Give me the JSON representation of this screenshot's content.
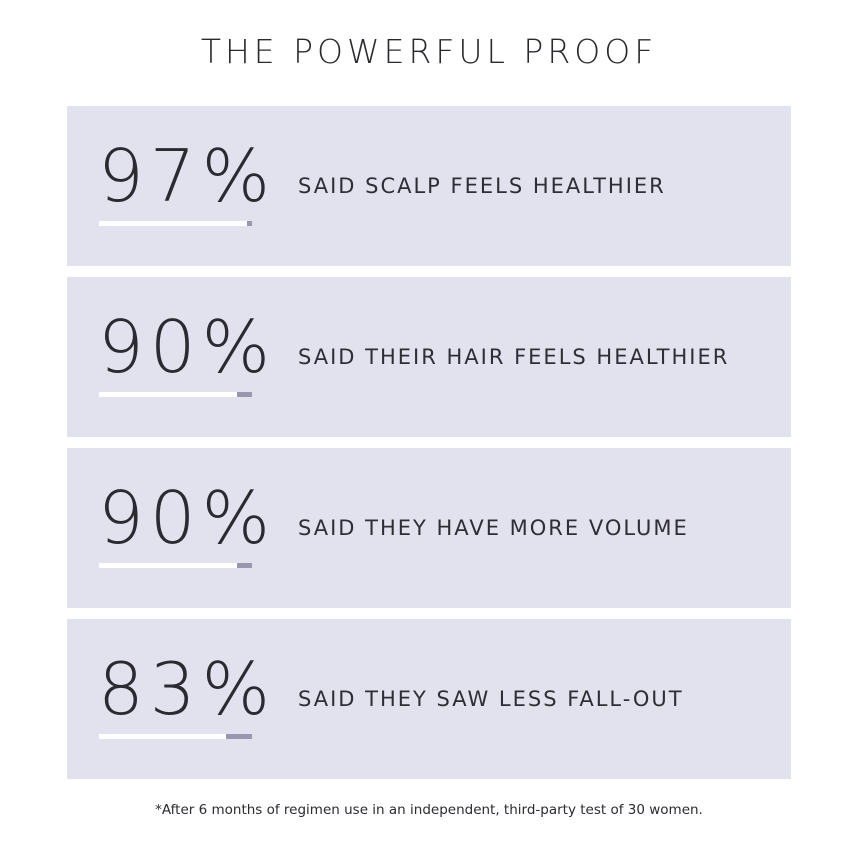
{
  "title": "THE POWERFUL PROOF",
  "stats": [
    {
      "value": "97%",
      "label": "SAID SCALP FEELS HEALTHIER",
      "fraction": 0.97
    },
    {
      "value": "90%",
      "label": "SAID THEIR HAIR FEELS HEALTHIER",
      "fraction": 0.9
    },
    {
      "value": "90%",
      "label": "SAID THEY HAVE MORE VOLUME",
      "fraction": 0.9
    },
    {
      "value": "83%",
      "label": "SAID THEY SAW LESS FALL-OUT",
      "fraction": 0.83
    }
  ],
  "footnote": "*After 6 months of regimen use in an independent, third-party test of 30 women.",
  "colors": {
    "card_background": "#e2e1ee",
    "bar_fill": "#ffffff",
    "bar_remainder": "#9996b2",
    "text": "#2a2a30"
  }
}
